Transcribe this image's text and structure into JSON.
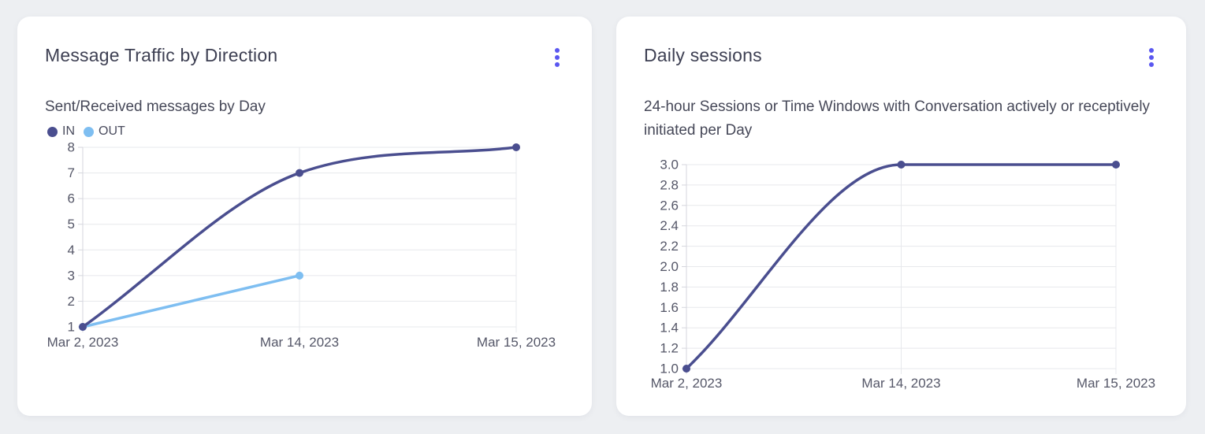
{
  "page": {
    "background_color": "#edeff2",
    "card_color": "#ffffff",
    "accent_color": "#5a57f0",
    "title_color": "#3e4053",
    "subtitle_color": "#464858",
    "tick_color": "#555768",
    "grid_color": "#e7e8ec",
    "axis_color": "#d5d6dd"
  },
  "cards": [
    {
      "menu_icon": "kebab-menu-icon"
    },
    {
      "menu_icon": "kebab-menu-icon"
    }
  ],
  "chart_data": [
    {
      "type": "line",
      "title": "Message Traffic by Direction",
      "subtitle": "Sent/Received messages by Day",
      "categories": [
        "Mar 2, 2023",
        "Mar 14, 2023",
        "Mar 15, 2023"
      ],
      "series": [
        {
          "name": "IN",
          "color": "#4a4e8f",
          "values": [
            1,
            7,
            8
          ]
        },
        {
          "name": "OUT",
          "color": "#7ebef1",
          "values": [
            1,
            3,
            null
          ]
        }
      ],
      "ylim": [
        1,
        8
      ],
      "yticks": [
        {
          "value": 8,
          "label": "8"
        },
        {
          "value": 7,
          "label": "7"
        },
        {
          "value": 6,
          "label": "6"
        },
        {
          "value": 5,
          "label": "5"
        },
        {
          "value": 4,
          "label": "4"
        },
        {
          "value": 3,
          "label": "3"
        },
        {
          "value": 2,
          "label": "2"
        },
        {
          "value": 1,
          "label": "1"
        }
      ],
      "grid": true,
      "legend_position": "top-left",
      "curve": "monotone"
    },
    {
      "type": "line",
      "title": "Daily sessions",
      "subtitle": "24-hour Sessions or Time Windows with Conversation actively or receptively initiated per Day",
      "categories": [
        "Mar 2, 2023",
        "Mar 14, 2023",
        "Mar 15, 2023"
      ],
      "series": [
        {
          "name": "Daily sessions",
          "color": "#4a4e8f",
          "values": [
            1.0,
            3.0,
            3.0
          ]
        }
      ],
      "ylim": [
        1.0,
        3.0
      ],
      "yticks": [
        {
          "value": 3.0,
          "label": "3.0"
        },
        {
          "value": 2.8,
          "label": "2.8"
        },
        {
          "value": 2.6,
          "label": "2.6"
        },
        {
          "value": 2.4,
          "label": "2.4"
        },
        {
          "value": 2.2,
          "label": "2.2"
        },
        {
          "value": 2.0,
          "label": "2.0"
        },
        {
          "value": 1.8,
          "label": "1.8"
        },
        {
          "value": 1.6,
          "label": "1.6"
        },
        {
          "value": 1.4,
          "label": "1.4"
        },
        {
          "value": 1.2,
          "label": "1.2"
        },
        {
          "value": 1.0,
          "label": "1.0"
        }
      ],
      "grid": true,
      "legend_position": "none",
      "curve": "monotone"
    }
  ]
}
